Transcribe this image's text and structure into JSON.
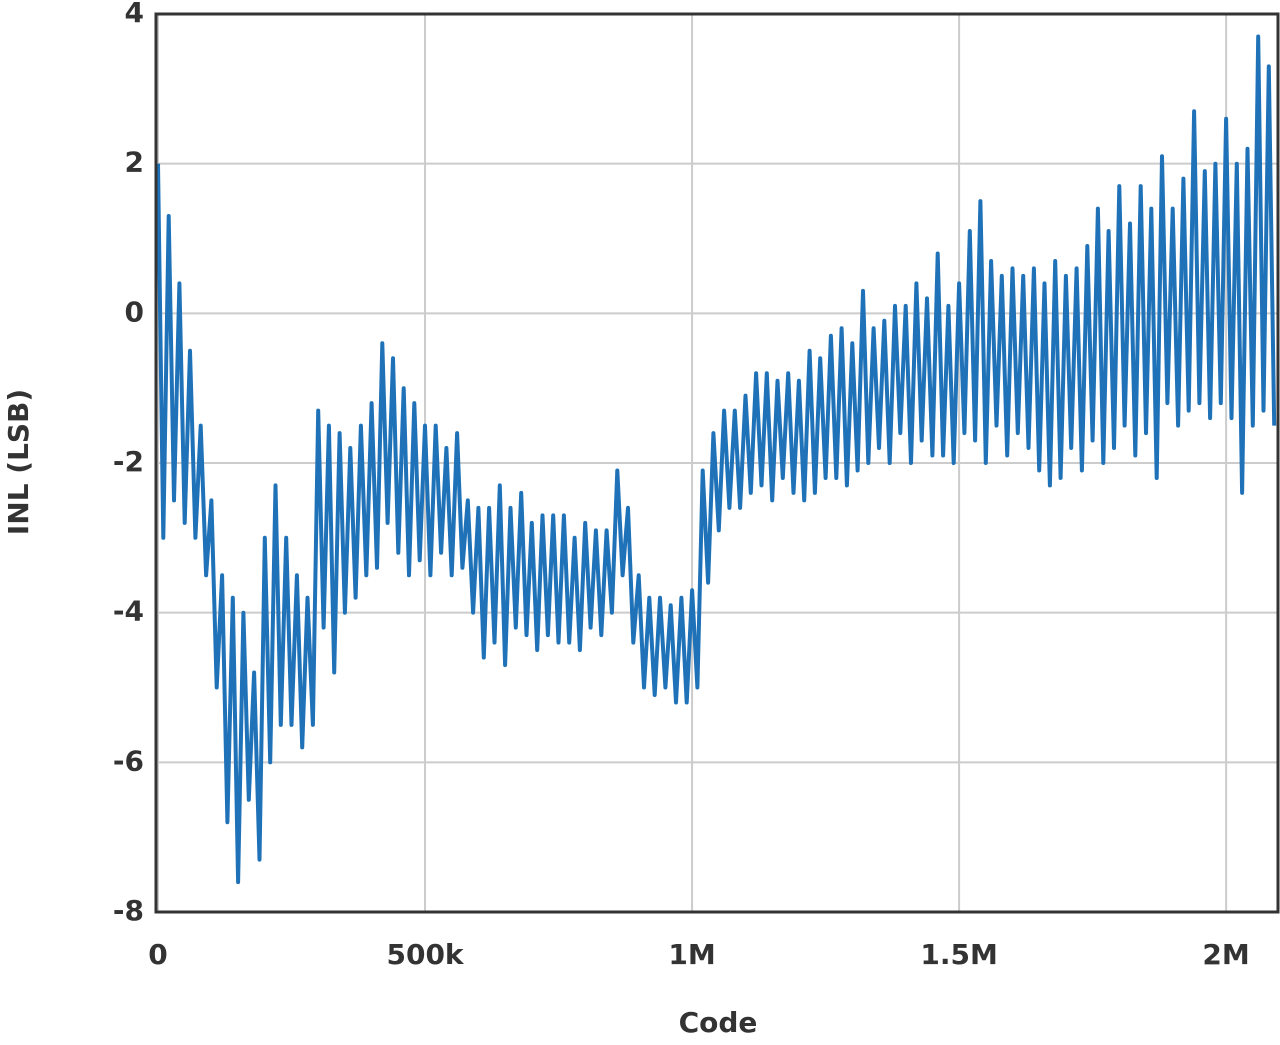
{
  "chart_data": {
    "type": "line",
    "xlabel": "Code",
    "ylabel": "INL (LSB)",
    "xlim": [
      0,
      2097152
    ],
    "ylim": [
      -8,
      4
    ],
    "xticks": [
      0,
      {
        "value": 500000,
        "label": "500k"
      },
      {
        "value": 1000000,
        "label": "1M"
      },
      {
        "value": 1500000,
        "label": "1.5M"
      },
      {
        "value": 2000000,
        "label": "2M"
      }
    ],
    "yticks": [
      -8,
      -6,
      -4,
      -2,
      0,
      2,
      4
    ],
    "grid": true,
    "x": [
      0,
      10000,
      20000,
      30000,
      40000,
      50000,
      60000,
      70000,
      80000,
      90000,
      100000,
      110000,
      120000,
      130000,
      140000,
      150000,
      160000,
      170000,
      180000,
      190000,
      200000,
      210000,
      220000,
      230000,
      240000,
      250000,
      260000,
      270000,
      280000,
      290000,
      300000,
      310000,
      320000,
      330000,
      340000,
      350000,
      360000,
      370000,
      380000,
      390000,
      400000,
      410000,
      420000,
      430000,
      440000,
      450000,
      460000,
      470000,
      480000,
      490000,
      500000,
      510000,
      520000,
      530000,
      540000,
      550000,
      560000,
      570000,
      580000,
      590000,
      600000,
      610000,
      620000,
      630000,
      640000,
      650000,
      660000,
      670000,
      680000,
      690000,
      700000,
      710000,
      720000,
      730000,
      740000,
      750000,
      760000,
      770000,
      780000,
      790000,
      800000,
      810000,
      820000,
      830000,
      840000,
      850000,
      860000,
      870000,
      880000,
      890000,
      900000,
      910000,
      920000,
      930000,
      940000,
      950000,
      960000,
      970000,
      980000,
      990000,
      1000000,
      1010000,
      1020000,
      1030000,
      1040000,
      1050000,
      1060000,
      1070000,
      1080000,
      1090000,
      1100000,
      1110000,
      1120000,
      1130000,
      1140000,
      1150000,
      1160000,
      1170000,
      1180000,
      1190000,
      1200000,
      1210000,
      1220000,
      1230000,
      1240000,
      1250000,
      1260000,
      1270000,
      1280000,
      1290000,
      1300000,
      1310000,
      1320000,
      1330000,
      1340000,
      1350000,
      1360000,
      1370000,
      1380000,
      1390000,
      1400000,
      1410000,
      1420000,
      1430000,
      1440000,
      1450000,
      1460000,
      1470000,
      1480000,
      1490000,
      1500000,
      1510000,
      1520000,
      1530000,
      1540000,
      1550000,
      1560000,
      1570000,
      1580000,
      1590000,
      1600000,
      1610000,
      1620000,
      1630000,
      1640000,
      1650000,
      1660000,
      1670000,
      1680000,
      1690000,
      1700000,
      1710000,
      1720000,
      1730000,
      1740000,
      1750000,
      1760000,
      1770000,
      1780000,
      1790000,
      1800000,
      1810000,
      1820000,
      1830000,
      1840000,
      1850000,
      1860000,
      1870000,
      1880000,
      1890000,
      1900000,
      1910000,
      1920000,
      1930000,
      1940000,
      1950000,
      1960000,
      1970000,
      1980000,
      1990000,
      2000000,
      2010000,
      2020000,
      2030000,
      2040000,
      2050000,
      2060000,
      2070000,
      2080000,
      2090000
    ],
    "series": [
      {
        "color": "#1f72b8",
        "values": [
          2,
          -3,
          1.3,
          -2.5,
          0.4,
          -2.8,
          -0.5,
          -3,
          -1.5,
          -3.5,
          -2.5,
          -5,
          -3.5,
          -6.8,
          -3.8,
          -7.6,
          -4,
          -6.5,
          -4.8,
          -7.3,
          -3,
          -6,
          -2.3,
          -5.5,
          -3,
          -5.5,
          -3.5,
          -5.8,
          -3.8,
          -5.5,
          -1.3,
          -4.2,
          -1.5,
          -4.8,
          -1.6,
          -4,
          -1.8,
          -3.8,
          -1.5,
          -3.5,
          -1.2,
          -3.4,
          -0.4,
          -2.8,
          -0.6,
          -3.2,
          -1,
          -3.5,
          -1.2,
          -3.3,
          -1.5,
          -3.5,
          -1.5,
          -3.2,
          -1.8,
          -3.5,
          -1.6,
          -3.4,
          -2.5,
          -4,
          -2.6,
          -4.6,
          -2.6,
          -4.4,
          -2.3,
          -4.7,
          -2.6,
          -4.2,
          -2.4,
          -4.3,
          -2.8,
          -4.5,
          -2.7,
          -4.3,
          -2.7,
          -4.4,
          -2.7,
          -4.4,
          -3,
          -4.5,
          -2.8,
          -4.2,
          -2.9,
          -4.3,
          -2.9,
          -4,
          -2.1,
          -3.5,
          -2.6,
          -4.4,
          -3.5,
          -5,
          -3.8,
          -5.1,
          -3.8,
          -5,
          -3.9,
          -5.2,
          -3.8,
          -5.2,
          -3.7,
          -5,
          -2.1,
          -3.6,
          -1.6,
          -2.9,
          -1.3,
          -2.6,
          -1.3,
          -2.6,
          -1.1,
          -2.4,
          -0.8,
          -2.3,
          -0.8,
          -2.5,
          -0.9,
          -2.2,
          -0.8,
          -2.4,
          -0.9,
          -2.5,
          -0.5,
          -2.4,
          -0.6,
          -2.2,
          -0.3,
          -2.2,
          -0.2,
          -2.3,
          -0.4,
          -2.1,
          0.3,
          -2,
          -0.2,
          -1.8,
          -0.1,
          -2,
          0.1,
          -1.6,
          0.1,
          -2,
          0.4,
          -1.7,
          0.2,
          -1.9,
          0.8,
          -1.9,
          0.1,
          -2,
          0.4,
          -1.6,
          1.1,
          -1.7,
          1.5,
          -2,
          0.7,
          -1.5,
          0.5,
          -1.9,
          0.6,
          -1.6,
          0.5,
          -1.8,
          0.6,
          -2.1,
          0.4,
          -2.3,
          0.7,
          -2.2,
          0.5,
          -1.8,
          0.6,
          -2.1,
          0.9,
          -1.7,
          1.4,
          -2,
          1.1,
          -1.8,
          1.7,
          -1.5,
          1.2,
          -1.9,
          1.7,
          -1.6,
          1.4,
          -2.2,
          2.1,
          -1.2,
          1.4,
          -1.5,
          1.8,
          -1.3,
          2.7,
          -1.2,
          1.9,
          -1.4,
          2,
          -1.2,
          2.6,
          -1.4,
          2,
          -2.4,
          2.2,
          -1.5,
          3.7,
          -1.3,
          3.3,
          -1.5
        ]
      }
    ]
  }
}
